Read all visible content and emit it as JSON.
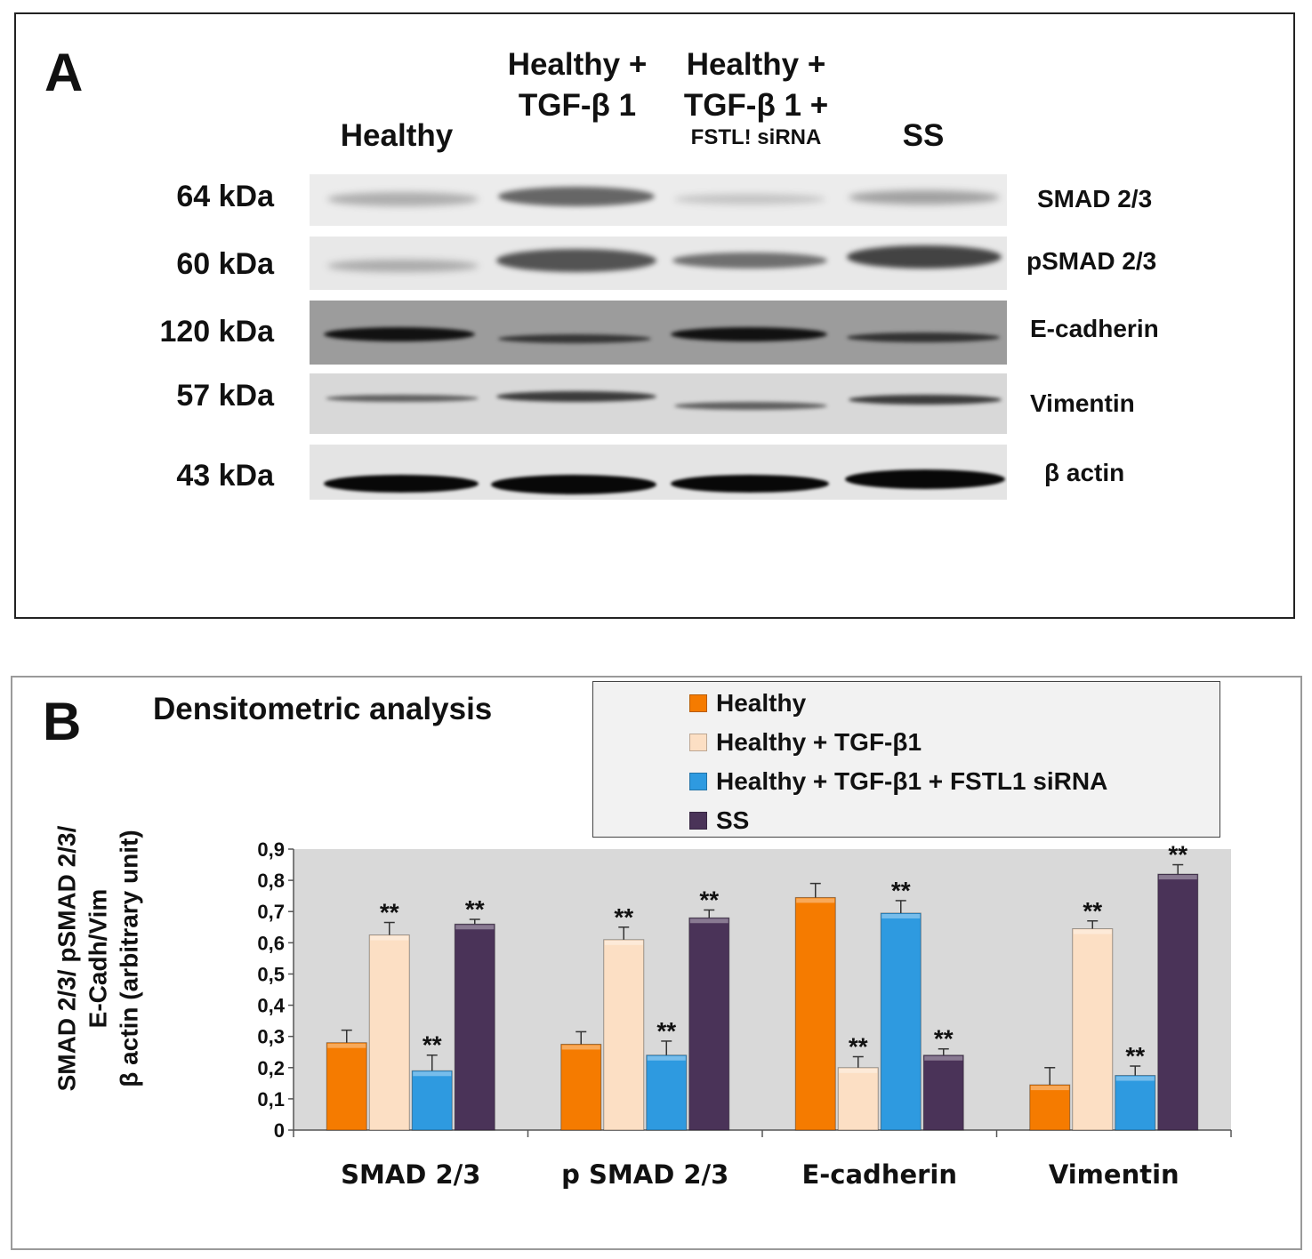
{
  "panel_a": {
    "letter": "A",
    "lanes": [
      {
        "line1": "",
        "line2": "Healthy",
        "sub": ""
      },
      {
        "line1": "Healthy +",
        "line2": "TGF-β 1",
        "sub": ""
      },
      {
        "line1": "Healthy +",
        "line2": "TGF-β 1 +",
        "sub": "FSTL! siRNA"
      },
      {
        "line1": "",
        "line2": "SS",
        "sub": ""
      }
    ],
    "rows": [
      {
        "kda": "64 kDa",
        "protein": "SMAD 2/3"
      },
      {
        "kda": "60 kDa",
        "protein": "pSMAD 2/3"
      },
      {
        "kda": "120 kDa",
        "protein": "E-cadherin"
      },
      {
        "kda": "57 kDa",
        "protein": "Vimentin"
      },
      {
        "kda": "43 kDa",
        "protein": "β actin"
      }
    ]
  },
  "panel_b": {
    "letter": "B",
    "legend": [
      {
        "label": "Healthy",
        "color": "#F57B00"
      },
      {
        "label": "Healthy + TGF-β1",
        "color": "#FCDFC4"
      },
      {
        "label": "Healthy + TGF-β1 + FSTL1 siRNA",
        "color": "#2E9AE0"
      },
      {
        "label": "SS",
        "color": "#4A3358"
      }
    ]
  },
  "chart_data": {
    "type": "bar",
    "title": "Densitometric analysis",
    "ylabel_lines": [
      "SMAD 2/3/ pSMAD 2/3/",
      "E-Cadh/Vim",
      "β actin (arbitrary unit)"
    ],
    "xlabel": "",
    "categories": [
      "SMAD 2/3",
      "p SMAD 2/3",
      "E-cadherin",
      "Vimentin"
    ],
    "ylim": [
      0,
      0.9
    ],
    "yticks": [
      "0",
      "0,1",
      "0,2",
      "0,3",
      "0,4",
      "0,5",
      "0,6",
      "0,7",
      "0,8",
      "0,9"
    ],
    "significance_marker": "**",
    "series": [
      {
        "name": "Healthy",
        "values": [
          0.28,
          0.275,
          0.745,
          0.145
        ],
        "errors": [
          0.04,
          0.04,
          0.045,
          0.055
        ],
        "sig": [
          false,
          false,
          false,
          false
        ]
      },
      {
        "name": "Healthy + TGF-β1",
        "values": [
          0.625,
          0.61,
          0.2,
          0.645
        ],
        "errors": [
          0.04,
          0.04,
          0.035,
          0.025
        ],
        "sig": [
          true,
          true,
          true,
          true
        ]
      },
      {
        "name": "Healthy + TGF-β1 + FSTL1 siRNA",
        "values": [
          0.19,
          0.24,
          0.695,
          0.175
        ],
        "errors": [
          0.05,
          0.045,
          0.04,
          0.03
        ],
        "sig": [
          true,
          true,
          true,
          true
        ]
      },
      {
        "name": "SS",
        "values": [
          0.66,
          0.68,
          0.24,
          0.82
        ],
        "errors": [
          0.015,
          0.025,
          0.02,
          0.03
        ],
        "sig": [
          true,
          true,
          true,
          true
        ]
      }
    ],
    "legend_position": "top-right",
    "grid": false,
    "plot_background": "#D9D9D9"
  }
}
